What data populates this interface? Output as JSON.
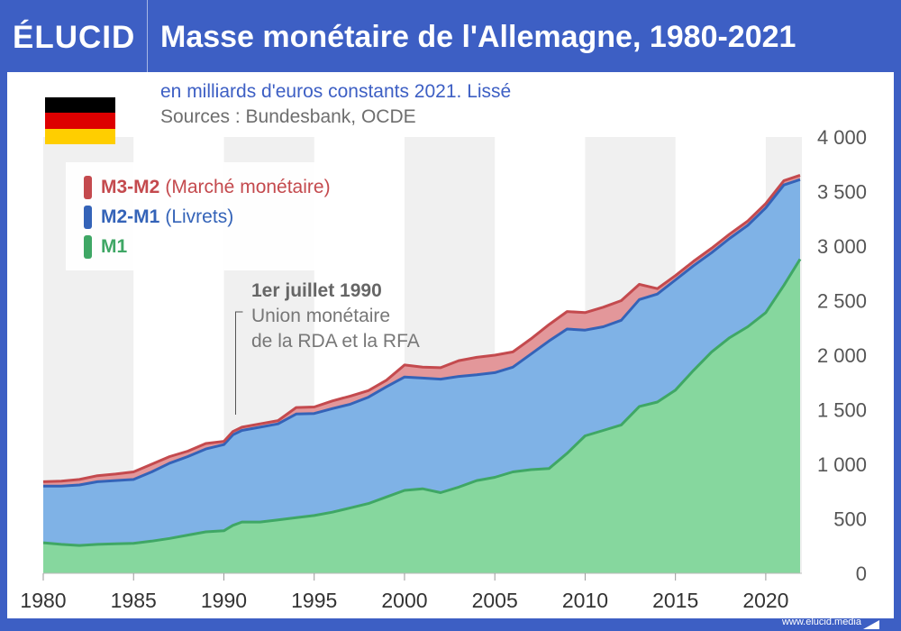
{
  "header": {
    "logo": "ÉLUCID",
    "title": "Masse monétaire de l'Allemagne, 1980-2021"
  },
  "chart_data": {
    "type": "area",
    "stacked": true,
    "title": "Masse monétaire de l'Allemagne, 1980-2021",
    "subtitle": "en milliards d'euros constants 2021. Lissé",
    "sources": "Sources : Bundesbank, OCDE",
    "y_axis_side": "right",
    "ylim": [
      0,
      4000
    ],
    "yticks": [
      0,
      500,
      1000,
      1500,
      2000,
      2500,
      3000,
      3500,
      4000
    ],
    "ytick_labels": [
      "0",
      "500",
      "1 000",
      "1 500",
      "2 000",
      "2 500",
      "3 000",
      "3 500",
      "4 000"
    ],
    "xlim": [
      1980,
      2022
    ],
    "xticks": [
      1980,
      1985,
      1990,
      1995,
      2000,
      2005,
      2010,
      2015,
      2020
    ],
    "xtick_labels": [
      "1980",
      "1985",
      "1990",
      "1995",
      "2000",
      "2005",
      "2010",
      "2015",
      "2020"
    ],
    "grid": "alternating vertical bands every 5 years",
    "legend_position": "top-left",
    "x": [
      1980,
      1981,
      1982,
      1983,
      1984,
      1985,
      1986,
      1987,
      1988,
      1989,
      1990,
      1990.5,
      1991,
      1992,
      1993,
      1994,
      1995,
      1996,
      1997,
      1998,
      1999,
      2000,
      2001,
      2002,
      2003,
      2004,
      2005,
      2006,
      2007,
      2008,
      2009,
      2010,
      2011,
      2012,
      2013,
      2014,
      2015,
      2016,
      2017,
      2018,
      2019,
      2020,
      2021,
      2021.9
    ],
    "series": [
      {
        "name": "M1",
        "color": "#86d79e",
        "line_color": "#3fa765",
        "values": [
          280,
          265,
          255,
          265,
          270,
          275,
          295,
          320,
          350,
          380,
          390,
          440,
          470,
          470,
          490,
          510,
          530,
          560,
          600,
          640,
          700,
          760,
          775,
          740,
          790,
          850,
          880,
          930,
          950,
          960,
          1100,
          1260,
          1310,
          1360,
          1530,
          1570,
          1680,
          1860,
          2030,
          2160,
          2260,
          2390,
          2640,
          2880
        ]
      },
      {
        "name": "M2-M1",
        "label": "M2-M1",
        "label_note": "(Livrets)",
        "color": "#7fb2e6",
        "line_color": "#3463b8",
        "values": [
          520,
          535,
          555,
          575,
          580,
          585,
          635,
          690,
          720,
          760,
          790,
          830,
          840,
          870,
          880,
          950,
          935,
          950,
          950,
          975,
          1010,
          1040,
          1015,
          1040,
          1015,
          970,
          960,
          960,
          1060,
          1170,
          1140,
          970,
          950,
          960,
          980,
          990,
          1010,
          960,
          910,
          910,
          930,
          960,
          920,
          730
        ]
      },
      {
        "name": "M3-M2",
        "label": "M3-M2",
        "label_note": "(Marché monétaire)",
        "color": "#e3979a",
        "line_color": "#c44a4e",
        "values": [
          40,
          45,
          50,
          55,
          60,
          70,
          70,
          60,
          50,
          50,
          30,
          30,
          30,
          30,
          30,
          60,
          60,
          70,
          75,
          60,
          60,
          110,
          100,
          105,
          145,
          160,
          160,
          140,
          140,
          150,
          160,
          160,
          180,
          180,
          140,
          50,
          40,
          40,
          40,
          40,
          40,
          40,
          40,
          40
        ]
      }
    ],
    "annotation": {
      "year": 1990.5,
      "title": "1er juillet 1990",
      "line1": "Union monétaire",
      "line2": "de la RDA et la RFA"
    }
  },
  "flag": {
    "colors": [
      "#000000",
      "#dd0000",
      "#ffce00"
    ]
  },
  "footer": {
    "url": "www.elucid.media"
  },
  "colors": {
    "brand_blue": "#3d5fc4",
    "band": "#f0f0f0"
  }
}
